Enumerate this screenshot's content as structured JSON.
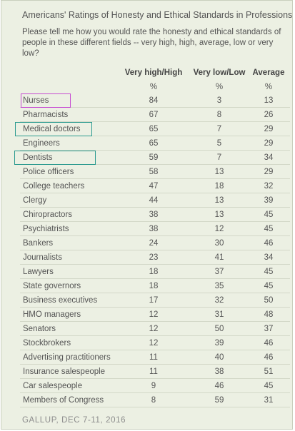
{
  "title": "Americans' Ratings of Honesty and Ethical Standards in Professions",
  "question": "Please tell me how you would rate the honesty and ethical standards of people in these different fields -- very high, high, average, low or very low?",
  "source": "GALLUP, DEC 7-11, 2016",
  "colors": {
    "background": "#ecf0e3",
    "highlight_nurses": "#c64bd1",
    "highlight_doctors": "#2a9a8f"
  },
  "chart_data": {
    "type": "table",
    "columns": [
      "Very high/High",
      "Very low/Low",
      "Average"
    ],
    "units": [
      "%",
      "%",
      "%"
    ],
    "rows": [
      {
        "label": "Nurses",
        "values": [
          84,
          3,
          13
        ],
        "highlight": "highlight_nurses"
      },
      {
        "label": "Pharmacists",
        "values": [
          67,
          8,
          26
        ]
      },
      {
        "label": "Medical doctors",
        "values": [
          65,
          7,
          29
        ],
        "highlight": "highlight_doctors"
      },
      {
        "label": "Engineers",
        "values": [
          65,
          5,
          29
        ]
      },
      {
        "label": "Dentists",
        "values": [
          59,
          7,
          34
        ],
        "highlight": "highlight_doctors"
      },
      {
        "label": "Police officers",
        "values": [
          58,
          13,
          29
        ]
      },
      {
        "label": "College teachers",
        "values": [
          47,
          18,
          32
        ]
      },
      {
        "label": "Clergy",
        "values": [
          44,
          13,
          39
        ]
      },
      {
        "label": "Chiropractors",
        "values": [
          38,
          13,
          45
        ]
      },
      {
        "label": "Psychiatrists",
        "values": [
          38,
          12,
          45
        ]
      },
      {
        "label": "Bankers",
        "values": [
          24,
          30,
          46
        ]
      },
      {
        "label": "Journalists",
        "values": [
          23,
          41,
          34
        ]
      },
      {
        "label": "Lawyers",
        "values": [
          18,
          37,
          45
        ]
      },
      {
        "label": "State governors",
        "values": [
          18,
          35,
          45
        ]
      },
      {
        "label": "Business executives",
        "values": [
          17,
          32,
          50
        ]
      },
      {
        "label": "HMO managers",
        "values": [
          12,
          31,
          48
        ]
      },
      {
        "label": "Senators",
        "values": [
          12,
          50,
          37
        ]
      },
      {
        "label": "Stockbrokers",
        "values": [
          12,
          39,
          46
        ]
      },
      {
        "label": "Advertising practitioners",
        "values": [
          11,
          40,
          46
        ]
      },
      {
        "label": "Insurance salespeople",
        "values": [
          11,
          38,
          51
        ]
      },
      {
        "label": "Car salespeople",
        "values": [
          9,
          46,
          45
        ]
      },
      {
        "label": "Members of Congress",
        "values": [
          8,
          59,
          31
        ]
      }
    ]
  }
}
